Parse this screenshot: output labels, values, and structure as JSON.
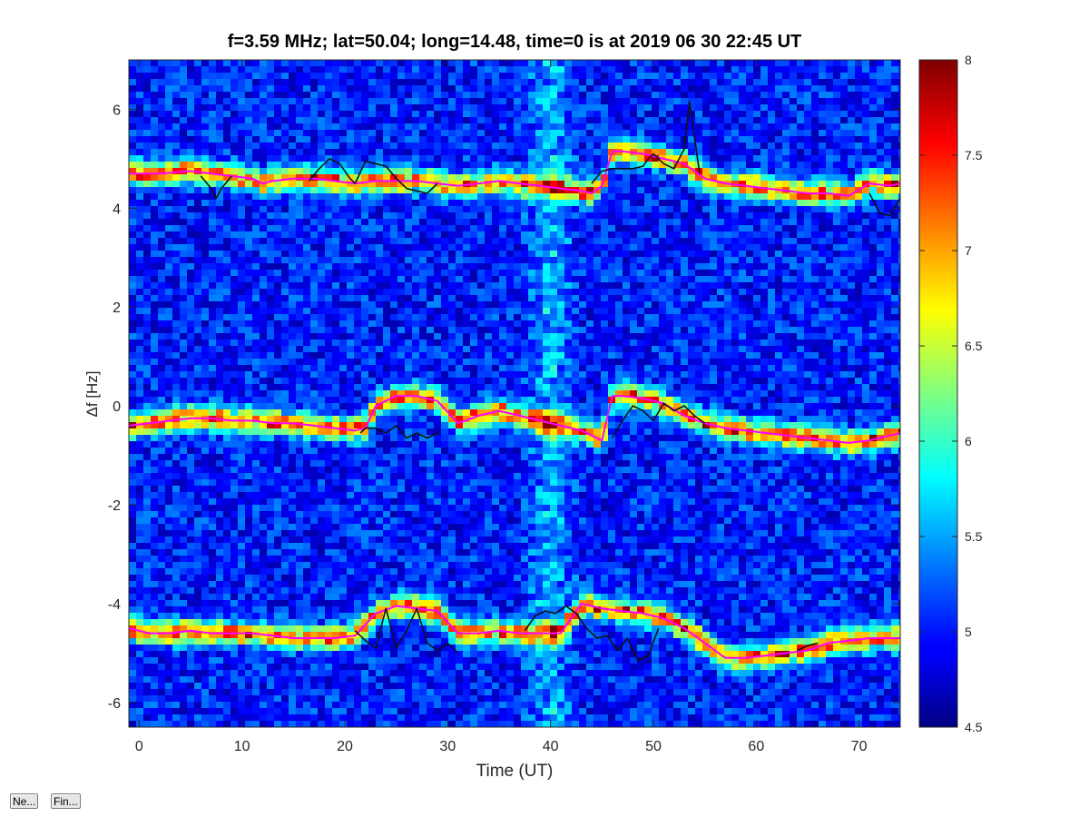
{
  "chart_data": {
    "type": "heatmap",
    "title": "f=3.59 MHz;  lat=50.04; long=14.48, time=0 is at 2019 06 30 22:45 UT",
    "xlabel": "Time (UT)",
    "ylabel": "Δf [Hz]",
    "xlim": [
      -1,
      74
    ],
    "ylim": [
      -6.5,
      7
    ],
    "xticks": [
      0,
      10,
      20,
      30,
      40,
      50,
      60,
      70
    ],
    "yticks": [
      -6,
      -4,
      -2,
      0,
      2,
      4,
      6
    ],
    "colorbar": {
      "min": 4.5,
      "max": 8,
      "ticks": [
        4.5,
        5,
        5.5,
        6,
        6.5,
        7,
        7.5,
        8
      ],
      "colormap": "jet"
    },
    "grid": false,
    "series": [
      {
        "color": "#ff00ff",
        "segments": [
          {
            "x": [
              -1,
              2,
              5,
              7,
              9,
              11,
              12,
              13,
              15,
              17,
              19,
              21,
              23,
              25,
              27,
              29,
              31,
              33,
              35,
              37,
              39,
              41,
              43,
              44,
              45,
              46,
              47,
              49,
              51,
              53,
              55,
              57,
              59,
              61,
              63,
              65,
              67,
              69,
              71,
              73,
              74
            ],
            "y": [
              4.7,
              4.7,
              4.75,
              4.7,
              4.65,
              4.6,
              4.5,
              4.55,
              4.6,
              4.6,
              4.55,
              4.5,
              4.55,
              4.55,
              4.55,
              4.5,
              4.45,
              4.5,
              4.55,
              4.5,
              4.45,
              4.4,
              4.35,
              4.3,
              4.45,
              5.15,
              5.15,
              5.1,
              5.0,
              4.9,
              4.6,
              4.5,
              4.45,
              4.4,
              4.35,
              4.3,
              4.3,
              4.25,
              4.5,
              4.45,
              4.5
            ]
          },
          {
            "x": [
              -1,
              1,
              3,
              5,
              7,
              9,
              11,
              13,
              15,
              17,
              19,
              21,
              22,
              23,
              25,
              27,
              29,
              31,
              33,
              35,
              37,
              39,
              41,
              43,
              45,
              46,
              47,
              49,
              51,
              53,
              55,
              57,
              59,
              61,
              63,
              65,
              67,
              69,
              71,
              73,
              74
            ],
            "y": [
              -0.4,
              -0.35,
              -0.3,
              -0.25,
              -0.25,
              -0.3,
              -0.3,
              -0.35,
              -0.35,
              -0.4,
              -0.45,
              -0.5,
              -0.45,
              0.0,
              0.2,
              0.2,
              0.1,
              -0.35,
              -0.2,
              -0.1,
              -0.2,
              -0.3,
              -0.4,
              -0.5,
              -0.7,
              0.2,
              0.2,
              0.15,
              0.05,
              -0.2,
              -0.35,
              -0.45,
              -0.5,
              -0.55,
              -0.6,
              -0.65,
              -0.7,
              -0.75,
              -0.7,
              -0.6,
              -0.55
            ]
          },
          {
            "x": [
              -1,
              1,
              3,
              5,
              7,
              9,
              11,
              13,
              15,
              17,
              19,
              21,
              23,
              25,
              27,
              29,
              31,
              33,
              35,
              37,
              39,
              41,
              43,
              45,
              47,
              49,
              51,
              53,
              55,
              57,
              59,
              61,
              63,
              65,
              67,
              69,
              71,
              73,
              74
            ],
            "y": [
              -4.5,
              -4.6,
              -4.6,
              -4.55,
              -4.6,
              -4.6,
              -4.6,
              -4.65,
              -4.7,
              -4.7,
              -4.7,
              -4.65,
              -4.2,
              -4.05,
              -4.1,
              -4.15,
              -4.6,
              -4.6,
              -4.55,
              -4.6,
              -4.6,
              -4.6,
              -4.0,
              -4.1,
              -4.15,
              -4.2,
              -4.3,
              -4.5,
              -4.8,
              -5.1,
              -5.1,
              -5.05,
              -5.0,
              -4.95,
              -4.8,
              -4.75,
              -4.7,
              -4.7,
              -4.7
            ]
          }
        ]
      },
      {
        "color": "#111111",
        "segments": [
          {
            "x": [
              6,
              7,
              7.5,
              8,
              9
            ],
            "y": [
              4.65,
              4.4,
              4.2,
              4.4,
              4.65
            ]
          },
          {
            "x": [
              16.5,
              17.5,
              18.5,
              19.5,
              20.5,
              21,
              22,
              23,
              24,
              25,
              26,
              27,
              28,
              29
            ],
            "y": [
              4.55,
              4.8,
              5.0,
              4.9,
              4.6,
              4.5,
              4.95,
              4.9,
              4.85,
              4.6,
              4.4,
              4.35,
              4.3,
              4.5
            ]
          },
          {
            "x": [
              44,
              45,
              46,
              47,
              48,
              49,
              49.5,
              50,
              51,
              52,
              53,
              53.5,
              54.5
            ],
            "y": [
              4.5,
              4.75,
              4.8,
              4.8,
              4.8,
              4.85,
              5.0,
              5.1,
              4.9,
              4.8,
              5.2,
              6.15,
              4.7
            ]
          },
          {
            "x": [
              71,
              72,
              73,
              74
            ],
            "y": [
              4.3,
              3.9,
              3.85,
              4.2
            ]
          },
          {
            "x": [
              21.5,
              22,
              23,
              24,
              25,
              26,
              27,
              28,
              29
            ],
            "y": [
              -0.55,
              -0.45,
              -0.45,
              -0.55,
              -0.4,
              -0.65,
              -0.55,
              -0.65,
              -0.55
            ]
          },
          {
            "x": [
              46,
              47,
              48,
              48.5,
              49,
              50,
              51,
              52,
              53,
              54,
              55
            ],
            "y": [
              -0.65,
              -0.3,
              0.0,
              -0.05,
              -0.1,
              -0.3,
              0.05,
              -0.1,
              0.0,
              -0.2,
              -0.35
            ]
          },
          {
            "x": [
              21,
              22,
              23,
              24,
              25,
              26,
              27,
              28,
              29,
              30,
              31
            ],
            "y": [
              -4.55,
              -4.75,
              -4.9,
              -4.1,
              -4.9,
              -4.55,
              -4.1,
              -4.8,
              -4.95,
              -4.8,
              -5.0
            ]
          },
          {
            "x": [
              37.5,
              38.5,
              39.5,
              40.5,
              41.5,
              42.5,
              43.5,
              44.5,
              45.5,
              46.5,
              47.5,
              48.5,
              49.5,
              50.5
            ],
            "y": [
              -4.55,
              -4.25,
              -4.15,
              -4.2,
              -4.05,
              -4.2,
              -4.5,
              -4.7,
              -4.65,
              -4.95,
              -4.7,
              -5.15,
              -5.05,
              -4.5
            ]
          },
          {
            "x": [
              64,
              65,
              66
            ],
            "y": [
              -4.95,
              -4.85,
              -4.8
            ]
          }
        ]
      }
    ],
    "bands_hidden": true
  },
  "buttons": {
    "next_label": "Ne...",
    "find_label": "Fin..."
  }
}
